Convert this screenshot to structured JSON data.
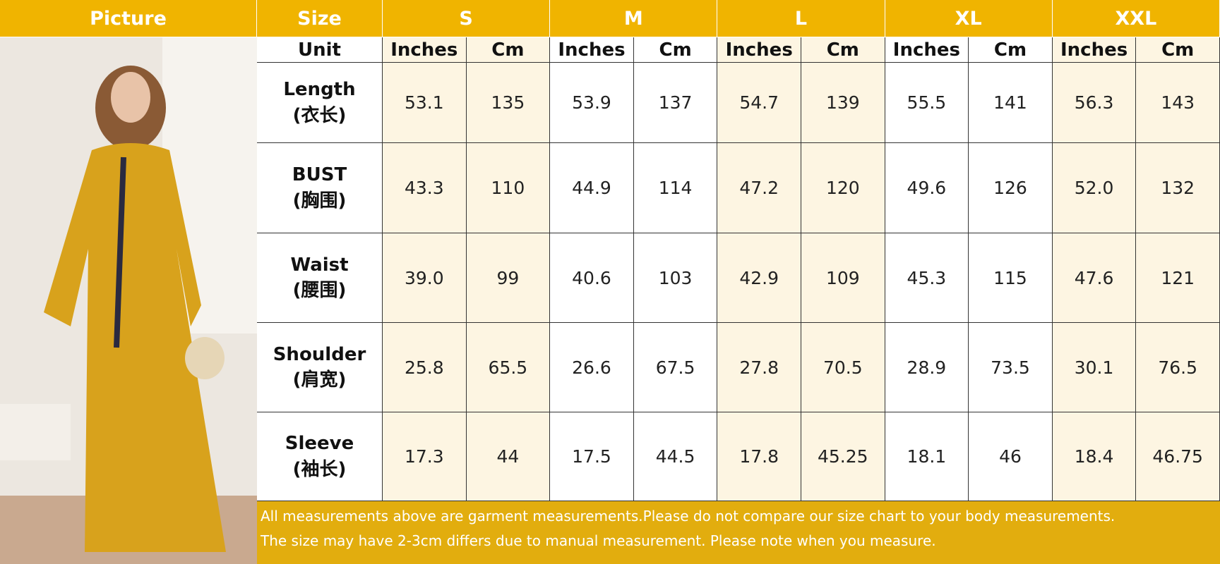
{
  "header": {
    "picture": "Picture",
    "size": "Size",
    "sizes": [
      "S",
      "M",
      "L",
      "XL",
      "XXL"
    ]
  },
  "unit_row": {
    "label": "Unit",
    "units": [
      "Inches",
      "Cm",
      "Inches",
      "Cm",
      "Inches",
      "Cm",
      "Inches",
      "Cm",
      "Inches",
      "Cm"
    ]
  },
  "rows": [
    {
      "label": "Length",
      "label_cn": "(衣长)",
      "values": [
        "53.1",
        "135",
        "53.9",
        "137",
        "54.7",
        "139",
        "55.5",
        "141",
        "56.3",
        "143"
      ]
    },
    {
      "label": "BUST",
      "label_cn": "(胸围)",
      "values": [
        "43.3",
        "110",
        "44.9",
        "114",
        "47.2",
        "120",
        "49.6",
        "126",
        "52.0",
        "132"
      ]
    },
    {
      "label": "Waist",
      "label_cn": "(腰围)",
      "values": [
        "39.0",
        "99",
        "40.6",
        "103",
        "42.9",
        "109",
        "45.3",
        "115",
        "47.6",
        "121"
      ]
    },
    {
      "label": "Shoulder",
      "label_cn": "(肩宽)",
      "values": [
        "25.8",
        "65.5",
        "26.6",
        "67.5",
        "27.8",
        "70.5",
        "28.9",
        "73.5",
        "30.1",
        "76.5"
      ]
    },
    {
      "label": "Sleeve",
      "label_cn": "(袖长)",
      "values": [
        "17.3",
        "44",
        "17.5",
        "44.5",
        "17.8",
        "45.25",
        "18.1",
        "46",
        "18.4",
        "46.75"
      ]
    }
  ],
  "notes": [
    "All measurements above are garment measurements.Please do not compare our size chart to your body measurements.",
    "The size may have 2-3cm differs due to manual measurement. Please note when you measure."
  ]
}
